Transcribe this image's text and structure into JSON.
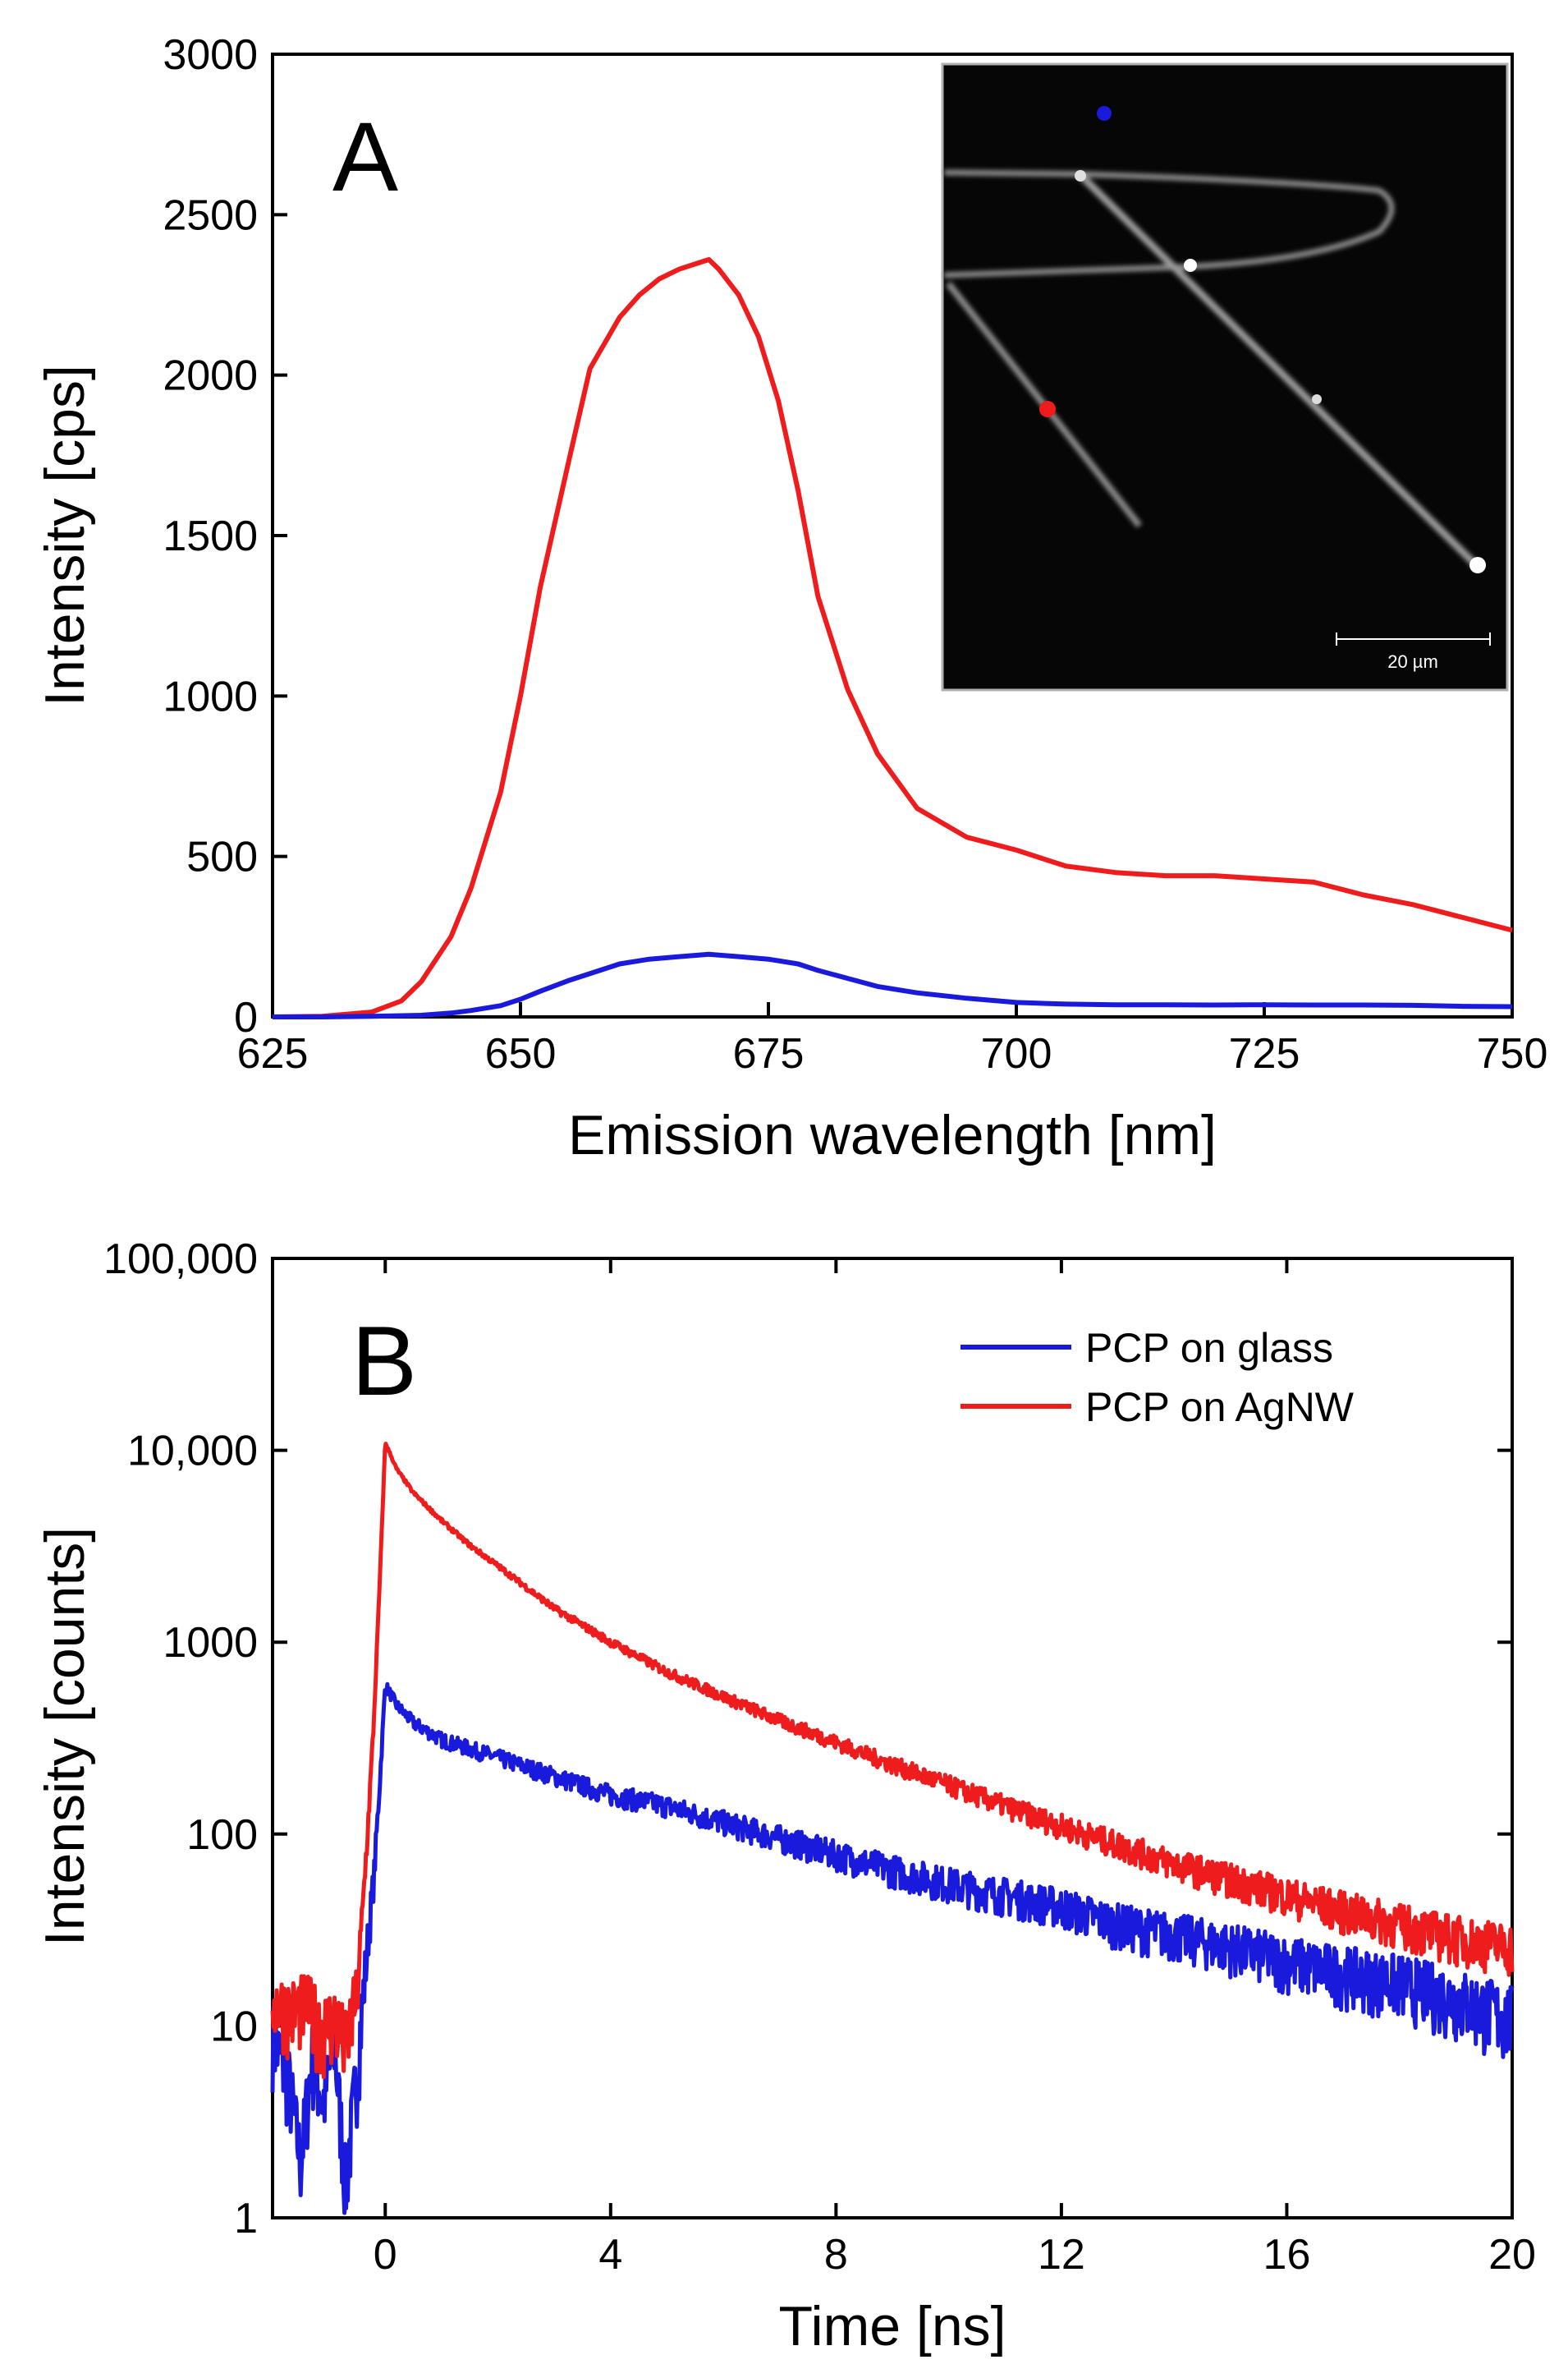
{
  "chart_data": [
    {
      "panel": "A",
      "type": "line",
      "xlabel": "Emission wavelength [nm]",
      "ylabel": "Intensity [cps]",
      "xlim": [
        625,
        750
      ],
      "ylim": [
        0,
        3000
      ],
      "xticks": [
        "625",
        "650",
        "675",
        "700",
        "725",
        "750"
      ],
      "yticks": [
        "0",
        "500",
        "1000",
        "1500",
        "2000",
        "2500",
        "3000"
      ],
      "series": [
        {
          "name": "AgNW",
          "color": "#ee1c1c",
          "x": [
            625,
            630,
            635,
            638,
            640,
            643,
            645,
            648,
            650,
            652,
            655,
            657,
            660,
            662,
            664,
            666,
            668,
            669,
            670,
            671,
            672,
            674,
            676,
            678,
            680,
            683,
            686,
            690,
            695,
            700,
            703,
            705,
            710,
            715,
            720,
            725,
            730,
            735,
            740,
            745,
            750
          ],
          "y": [
            0,
            2,
            15,
            50,
            110,
            250,
            400,
            700,
            1000,
            1340,
            1750,
            2020,
            2180,
            2250,
            2300,
            2330,
            2350,
            2360,
            2330,
            2290,
            2250,
            2120,
            1920,
            1640,
            1310,
            1020,
            820,
            650,
            560,
            520,
            490,
            470,
            450,
            440,
            440,
            430,
            420,
            380,
            350,
            310,
            270
          ]
        },
        {
          "name": "glass",
          "color": "#1a1adc",
          "x": [
            625,
            630,
            635,
            640,
            643,
            645,
            648,
            650,
            652,
            655,
            658,
            660,
            663,
            666,
            669,
            672,
            675,
            678,
            680,
            683,
            686,
            690,
            695,
            700,
            705,
            710,
            715,
            720,
            725,
            730,
            735,
            740,
            745,
            750
          ],
          "y": [
            0,
            0,
            2,
            5,
            12,
            20,
            35,
            55,
            80,
            115,
            145,
            165,
            180,
            188,
            195,
            188,
            180,
            165,
            145,
            120,
            95,
            75,
            58,
            45,
            40,
            38,
            38,
            37,
            38,
            37,
            37,
            36,
            33,
            32
          ]
        }
      ],
      "inset": {
        "markers": [
          {
            "name": "blue-marker",
            "color": "#1a1adc"
          },
          {
            "name": "red-marker",
            "color": "#ee1c1c"
          }
        ],
        "scale_bar_label": "20 µm"
      }
    },
    {
      "panel": "B",
      "type": "line",
      "xlabel": "Time [ns]",
      "ylabel": "Intensity [counts]",
      "xlim": [
        -2,
        20
      ],
      "ylim": [
        1,
        100000
      ],
      "yscale": "log",
      "xticks": [
        "0",
        "4",
        "8",
        "12",
        "16",
        "20"
      ],
      "yticks": [
        "1",
        "10",
        "100",
        "1000",
        "10,000",
        "100,000"
      ],
      "legend": {
        "placement": "top-right",
        "entries": [
          "PCP on glass",
          "PCP on AgNW"
        ]
      },
      "series": [
        {
          "name": "PCP on glass",
          "color": "#1a1adc",
          "x": [
            -2,
            -1.7,
            -1.5,
            -1.3,
            -1.1,
            -0.9,
            -0.7,
            -0.5,
            -0.3,
            -0.2,
            -0.1,
            0,
            0.2,
            0.5,
            1,
            2,
            3,
            4,
            5,
            6,
            7,
            8,
            9,
            10,
            11,
            12,
            13,
            14,
            15,
            16,
            17,
            18,
            19,
            20
          ],
          "y": [
            9,
            5,
            2,
            7,
            4,
            8,
            1.5,
            6,
            30,
            60,
            180,
            600,
            470,
            380,
            310,
            250,
            200,
            160,
            140,
            115,
            95,
            78,
            65,
            55,
            48,
            42,
            34,
            30,
            26,
            22,
            19,
            17,
            14,
            11
          ]
        },
        {
          "name": "PCP on AgNW",
          "color": "#ee1c1c",
          "x": [
            -2,
            -1.7,
            -1.4,
            -1.1,
            -0.9,
            -0.7,
            -0.5,
            -0.4,
            -0.3,
            -0.2,
            -0.1,
            0,
            0.2,
            0.5,
            1,
            1.5,
            2,
            3,
            4,
            5,
            6,
            7,
            8,
            9,
            10,
            11,
            12,
            13,
            14,
            15,
            16,
            17,
            18,
            19,
            20
          ],
          "y": [
            14,
            12,
            13,
            10,
            11,
            8,
            15,
            40,
            120,
            400,
            2000,
            11000,
            8000,
            6000,
            4300,
            3200,
            2500,
            1500,
            1000,
            700,
            520,
            390,
            300,
            230,
            180,
            140,
            110,
            88,
            70,
            58,
            48,
            40,
            34,
            29,
            26
          ]
        }
      ]
    }
  ],
  "panel_letters": {
    "a": "A",
    "b": "B"
  },
  "colors": {
    "red": "#ee1c1c",
    "blue": "#1a1adc"
  }
}
